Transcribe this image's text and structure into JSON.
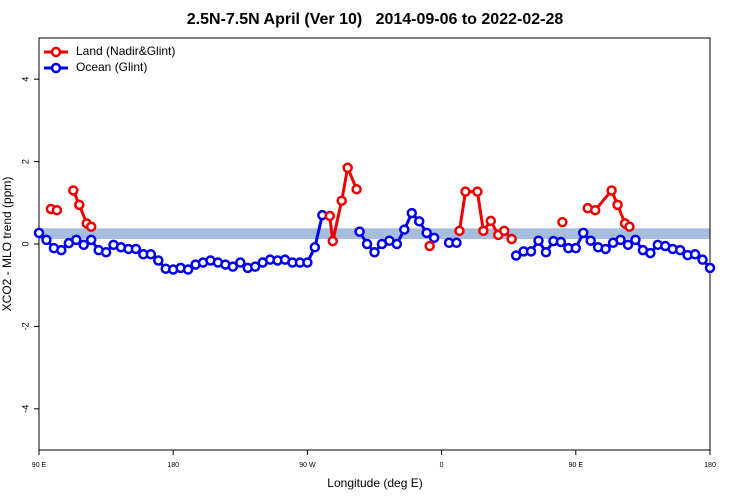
{
  "chart_data": {
    "type": "line",
    "title": "2.5N-7.5N April (Ver 10)   2014-09-06 to 2022-02-28",
    "xlabel": "Longitude (deg E)",
    "ylabel": "XCO2 - MLO trend (ppm)",
    "xlim": [
      90,
      540
    ],
    "ylim": [
      -5,
      5
    ],
    "xticks": [
      {
        "value": 90,
        "label": "90 E"
      },
      180,
      {
        "value": 270,
        "label": "90 W"
      },
      {
        "value": 360,
        "label": "0"
      },
      {
        "value": 450,
        "label": "90 E"
      },
      {
        "value": 540,
        "label": "180"
      }
    ],
    "yticks": [
      -4,
      -2,
      0,
      2,
      4
    ],
    "legend": "top-left",
    "reference_band": {
      "range": [
        0.12,
        0.38
      ],
      "color": "#a6bddb"
    },
    "series": [
      {
        "name": "Land (Nadir&Glint)",
        "color": "#ee0000",
        "x": [
          98,
          102,
          null,
          113,
          117,
          122,
          125,
          null,
          285,
          287,
          293,
          297,
          303,
          null,
          352,
          null,
          372,
          376,
          384,
          388,
          393,
          398,
          402,
          407,
          null,
          441,
          null,
          458,
          463,
          474,
          478,
          483,
          486
        ],
        "values": [
          0.85,
          0.82,
          null,
          1.3,
          0.95,
          0.5,
          0.42,
          null,
          0.68,
          0.07,
          1.05,
          1.85,
          1.33,
          null,
          -0.05,
          null,
          0.32,
          1.27,
          1.27,
          0.32,
          0.56,
          0.22,
          0.32,
          0.12,
          null,
          0.53,
          null,
          0.87,
          0.82,
          1.3,
          0.95,
          0.5,
          0.42
        ]
      },
      {
        "name": "Ocean (Glint)",
        "color": "#0000ee",
        "x": [
          90,
          95,
          100,
          105,
          110,
          115,
          120,
          125,
          130,
          135,
          140,
          145,
          150,
          155,
          160,
          165,
          170,
          175,
          180,
          185,
          190,
          195,
          200,
          205,
          210,
          215,
          220,
          225,
          230,
          235,
          240,
          245,
          250,
          255,
          260,
          265,
          270,
          275,
          280,
          285,
          290,
          295,
          300,
          305,
          310,
          315,
          320,
          325,
          330,
          335,
          340,
          345,
          350,
          355,
          360,
          365,
          370,
          375,
          380,
          385,
          390,
          395,
          400,
          405,
          410,
          415,
          420,
          425,
          430,
          435,
          440,
          445,
          450,
          455,
          460,
          465,
          470,
          475,
          480,
          485,
          490,
          495,
          500,
          505,
          510,
          515,
          520,
          525,
          530,
          535,
          540
        ],
        "values": [
          0.27,
          0.1,
          -0.1,
          -0.15,
          0.02,
          0.1,
          -0.02,
          0.1,
          -0.15,
          -0.2,
          -0.02,
          -0.08,
          -0.12,
          -0.12,
          -0.25,
          -0.25,
          -0.4,
          -0.6,
          -0.62,
          -0.58,
          -0.62,
          -0.5,
          -0.45,
          -0.4,
          -0.45,
          -0.5,
          -0.55,
          -0.45,
          -0.58,
          -0.55,
          -0.45,
          -0.38,
          -0.4,
          -0.38,
          -0.45,
          -0.45,
          -0.45,
          -0.08,
          0.7,
          null,
          null,
          null,
          null,
          0.3,
          0,
          -0.2,
          0,
          0.08,
          0,
          0.35,
          0.75,
          0.55,
          0.27,
          0.15,
          null,
          0.03,
          0.03,
          null,
          null,
          null,
          null,
          null,
          null,
          null,
          -0.28,
          -0.18,
          -0.18,
          0.08,
          -0.2,
          0.07,
          0.05,
          -0.1,
          -0.1,
          0.27,
          0.08,
          -0.08,
          -0.12,
          0.03,
          0.1,
          -0.02,
          0.1,
          -0.15,
          -0.22,
          -0.02,
          -0.05,
          -0.12,
          -0.15,
          -0.27,
          -0.25,
          -0.38,
          -0.58
        ]
      }
    ]
  }
}
